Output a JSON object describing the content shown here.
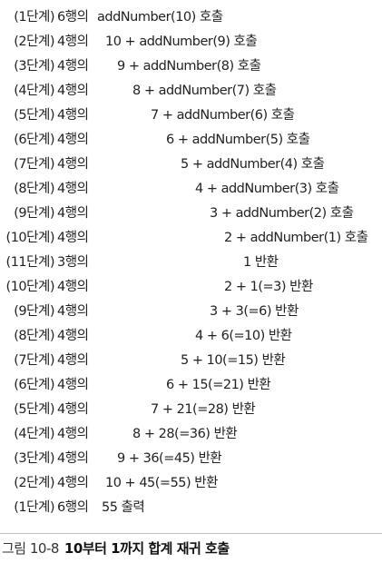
{
  "rows": [
    {
      "step": "(1단계)",
      "line": "6행의",
      "expr": "addNumber(10) 호출"
    },
    {
      "step": "(2단계)",
      "line": "4행의",
      "expr": "10 + addNumber(9) 호출"
    },
    {
      "step": "(3단계)",
      "line": "4행의",
      "expr": "9 + addNumber(8) 호출"
    },
    {
      "step": "(4단계)",
      "line": "4행의",
      "expr": "8 + addNumber(7) 호출"
    },
    {
      "step": "(5단계)",
      "line": "4행의",
      "expr": "7 + addNumber(6) 호출"
    },
    {
      "step": "(6단계)",
      "line": "4행의",
      "expr": "6 + addNumber(5) 호출"
    },
    {
      "step": "(7단계)",
      "line": "4행의",
      "expr": "5 + addNumber(4) 호출"
    },
    {
      "step": "(8단계)",
      "line": "4행의",
      "expr": "4 + addNumber(3) 호출"
    },
    {
      "step": "(9단계)",
      "line": "4행의",
      "expr": "3 + addNumber(2) 호출"
    },
    {
      "step": "(10단계)",
      "line": "4행의",
      "expr": "2 + addNumber(1) 호출"
    },
    {
      "step": "(11단계)",
      "line": "3행의",
      "expr": "1 반환"
    },
    {
      "step": "(10단계)",
      "line": "4행의",
      "expr": "2 + 1(=3) 반환"
    },
    {
      "step": "(9단계)",
      "line": "4행의",
      "expr": "3 + 3(=6) 반환"
    },
    {
      "step": "(8단계)",
      "line": "4행의",
      "expr": "4 + 6(=10) 반환"
    },
    {
      "step": "(7단계)",
      "line": "4행의",
      "expr": "5 + 10(=15) 반환"
    },
    {
      "step": "(6단계)",
      "line": "4행의",
      "expr": "6 + 15(=21) 반환"
    },
    {
      "step": "(5단계)",
      "line": "4행의",
      "expr": "7 + 21(=28) 반환"
    },
    {
      "step": "(4단계)",
      "line": "4행의",
      "expr": "8 + 28(=36) 반환"
    },
    {
      "step": "(3단계)",
      "line": "4행의",
      "expr": "9 + 36(=45) 반환"
    },
    {
      "step": "(2단계)",
      "line": "4행의",
      "expr": "10 + 45(=55) 반환"
    },
    {
      "step": "(1단계)",
      "line": "6행의",
      "expr": "55 출력"
    }
  ],
  "caption": {
    "label": "그림 10-8",
    "title": "10부터 1까지 합계 재귀 호출"
  }
}
